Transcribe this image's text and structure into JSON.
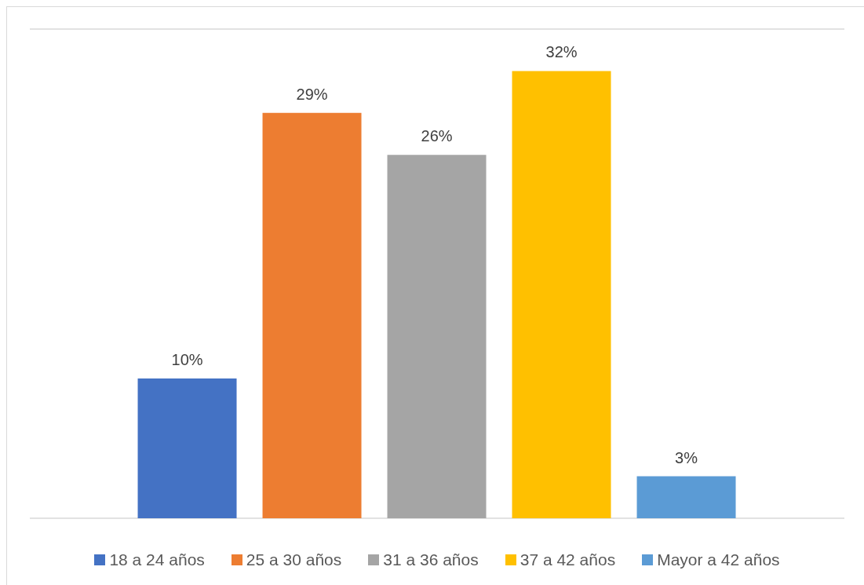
{
  "chart_data": {
    "type": "bar",
    "categories": [
      null
    ],
    "series": [
      {
        "name": "18 a 24 años",
        "color": "#4472c4",
        "values": [
          10
        ],
        "value_labels": [
          "10%"
        ]
      },
      {
        "name": "25 a 30 años",
        "color": "#ed7d31",
        "values": [
          29
        ],
        "value_labels": [
          "29%"
        ]
      },
      {
        "name": "31 a 36 años",
        "color": "#a5a5a5",
        "values": [
          26
        ],
        "value_labels": [
          "26%"
        ]
      },
      {
        "name": "37 a 42 años",
        "color": "#ffc000",
        "values": [
          32
        ],
        "value_labels": [
          "32%"
        ]
      },
      {
        "name": "Mayor a 42 años",
        "color": "#5b9bd5",
        "values": [
          3
        ],
        "value_labels": [
          "3%"
        ]
      }
    ],
    "ylim": [
      0,
      35
    ],
    "grid": "y",
    "legend": "bottom",
    "tick_labels": false
  }
}
